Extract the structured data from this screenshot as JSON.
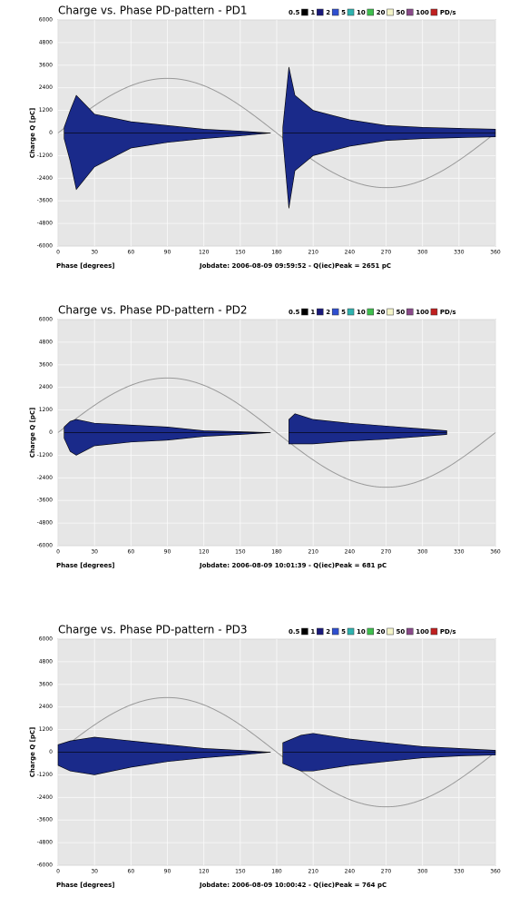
{
  "chart_data": [
    {
      "type": "scatter",
      "title": "Charge vs. Phase PD-pattern - PD1",
      "x_label": "Phase [degrees]",
      "y_label": "Charge Q [pC]",
      "footer": "Jobdate: 2006-08-09 09:59:52 - Q(iec)Peak = 2651 pC",
      "legend": {
        "items": [
          {
            "label": "0.5",
            "color": "#000000"
          },
          {
            "label": "1",
            "color": "#1a1a7a"
          },
          {
            "label": "2",
            "color": "#2f4fd0"
          },
          {
            "label": "5",
            "color": "#2fb3b0"
          },
          {
            "label": "10",
            "color": "#3fbf4f"
          },
          {
            "label": "20",
            "color": "#f4f4c8"
          },
          {
            "label": "50",
            "color": "#8a4a8a"
          },
          {
            "label": "100",
            "color": "#c02020"
          }
        ],
        "unit": "PD/s"
      },
      "xlim": [
        0,
        360
      ],
      "xticks": [
        0,
        30,
        60,
        90,
        120,
        150,
        180,
        210,
        240,
        270,
        300,
        330,
        360
      ],
      "ylim": [
        -6000,
        6000
      ],
      "yticks": [
        6000,
        4800,
        3600,
        2400,
        1200,
        0,
        -1200,
        -2400,
        -3600,
        -4800,
        -6000
      ],
      "grid": true,
      "reference_amplitude": 2900,
      "cloud_color": "#1a2a8a",
      "clusters": [
        {
          "x": [
            5,
            10,
            15,
            30,
            60,
            90,
            120,
            150,
            175
          ],
          "upper": [
            300,
            1200,
            2000,
            1000,
            600,
            400,
            200,
            100,
            0
          ],
          "lower": [
            -300,
            -1500,
            -3000,
            -1800,
            -800,
            -500,
            -300,
            -150,
            0
          ]
        },
        {
          "x": [
            185,
            190,
            195,
            210,
            240,
            270,
            300,
            360
          ],
          "upper": [
            300,
            3500,
            2000,
            1200,
            700,
            400,
            300,
            200
          ],
          "lower": [
            -300,
            -4000,
            -2000,
            -1200,
            -700,
            -400,
            -300,
            -200
          ]
        }
      ]
    },
    {
      "type": "scatter",
      "title": "Charge vs. Phase PD-pattern - PD2",
      "x_label": "Phase [degrees]",
      "y_label": "Charge Q [pC]",
      "footer": "Jobdate: 2006-08-09 10:01:39 - Q(iec)Peak = 681 pC",
      "legend": {
        "items": [
          {
            "label": "0.5",
            "color": "#000000"
          },
          {
            "label": "1",
            "color": "#1a1a7a"
          },
          {
            "label": "2",
            "color": "#2f4fd0"
          },
          {
            "label": "5",
            "color": "#2fb3b0"
          },
          {
            "label": "10",
            "color": "#3fbf4f"
          },
          {
            "label": "20",
            "color": "#f4f4c8"
          },
          {
            "label": "50",
            "color": "#8a4a8a"
          },
          {
            "label": "100",
            "color": "#c02020"
          }
        ],
        "unit": "PD/s"
      },
      "xlim": [
        0,
        360
      ],
      "xticks": [
        0,
        30,
        60,
        90,
        120,
        150,
        180,
        210,
        240,
        270,
        300,
        330,
        360
      ],
      "ylim": [
        -6000,
        6000
      ],
      "yticks": [
        6000,
        4800,
        3600,
        2400,
        1200,
        0,
        -1200,
        -2400,
        -3600,
        -4800,
        -6000
      ],
      "grid": true,
      "reference_amplitude": 2900,
      "cloud_color": "#1a2a8a",
      "clusters": [
        {
          "x": [
            5,
            10,
            15,
            30,
            60,
            90,
            120,
            150,
            175
          ],
          "upper": [
            300,
            600,
            700,
            500,
            400,
            300,
            100,
            50,
            0
          ],
          "lower": [
            -300,
            -1000,
            -1200,
            -700,
            -500,
            -400,
            -200,
            -100,
            0
          ]
        },
        {
          "x": [
            190,
            195,
            210,
            240,
            270,
            300,
            320
          ],
          "upper": [
            700,
            1000,
            700,
            500,
            350,
            200,
            100
          ],
          "lower": [
            -600,
            -600,
            -600,
            -450,
            -350,
            -200,
            -100
          ]
        }
      ]
    },
    {
      "type": "scatter",
      "title": "Charge vs. Phase PD-pattern - PD3",
      "x_label": "Phase [degrees]",
      "y_label": "Charge Q [pC]",
      "footer": "Jobdate: 2006-08-09 10:00:42 - Q(iec)Peak = 764 pC",
      "legend": {
        "items": [
          {
            "label": "0.5",
            "color": "#000000"
          },
          {
            "label": "1",
            "color": "#1a1a7a"
          },
          {
            "label": "2",
            "color": "#2f4fd0"
          },
          {
            "label": "5",
            "color": "#2fb3b0"
          },
          {
            "label": "10",
            "color": "#3fbf4f"
          },
          {
            "label": "20",
            "color": "#f4f4c8"
          },
          {
            "label": "50",
            "color": "#8a4a8a"
          },
          {
            "label": "100",
            "color": "#c02020"
          }
        ],
        "unit": "PD/s"
      },
      "xlim": [
        0,
        360
      ],
      "xticks": [
        0,
        30,
        60,
        90,
        120,
        150,
        180,
        210,
        240,
        270,
        300,
        330,
        360
      ],
      "ylim": [
        -6000,
        6000
      ],
      "yticks": [
        6000,
        4800,
        3600,
        2400,
        1200,
        0,
        -1200,
        -2400,
        -3600,
        -4800,
        -6000
      ],
      "grid": true,
      "reference_amplitude": 2900,
      "cloud_color": "#1a2a8a",
      "clusters": [
        {
          "x": [
            0,
            10,
            30,
            60,
            90,
            120,
            150,
            175
          ],
          "upper": [
            400,
            600,
            800,
            600,
            400,
            200,
            100,
            0
          ],
          "lower": [
            -700,
            -1000,
            -1200,
            -800,
            -500,
            -300,
            -150,
            0
          ]
        },
        {
          "x": [
            185,
            200,
            210,
            240,
            270,
            300,
            330,
            360
          ],
          "upper": [
            500,
            900,
            1000,
            700,
            500,
            300,
            200,
            100
          ],
          "lower": [
            -600,
            -1000,
            -1000,
            -700,
            -500,
            -300,
            -200,
            -150
          ]
        }
      ]
    }
  ]
}
